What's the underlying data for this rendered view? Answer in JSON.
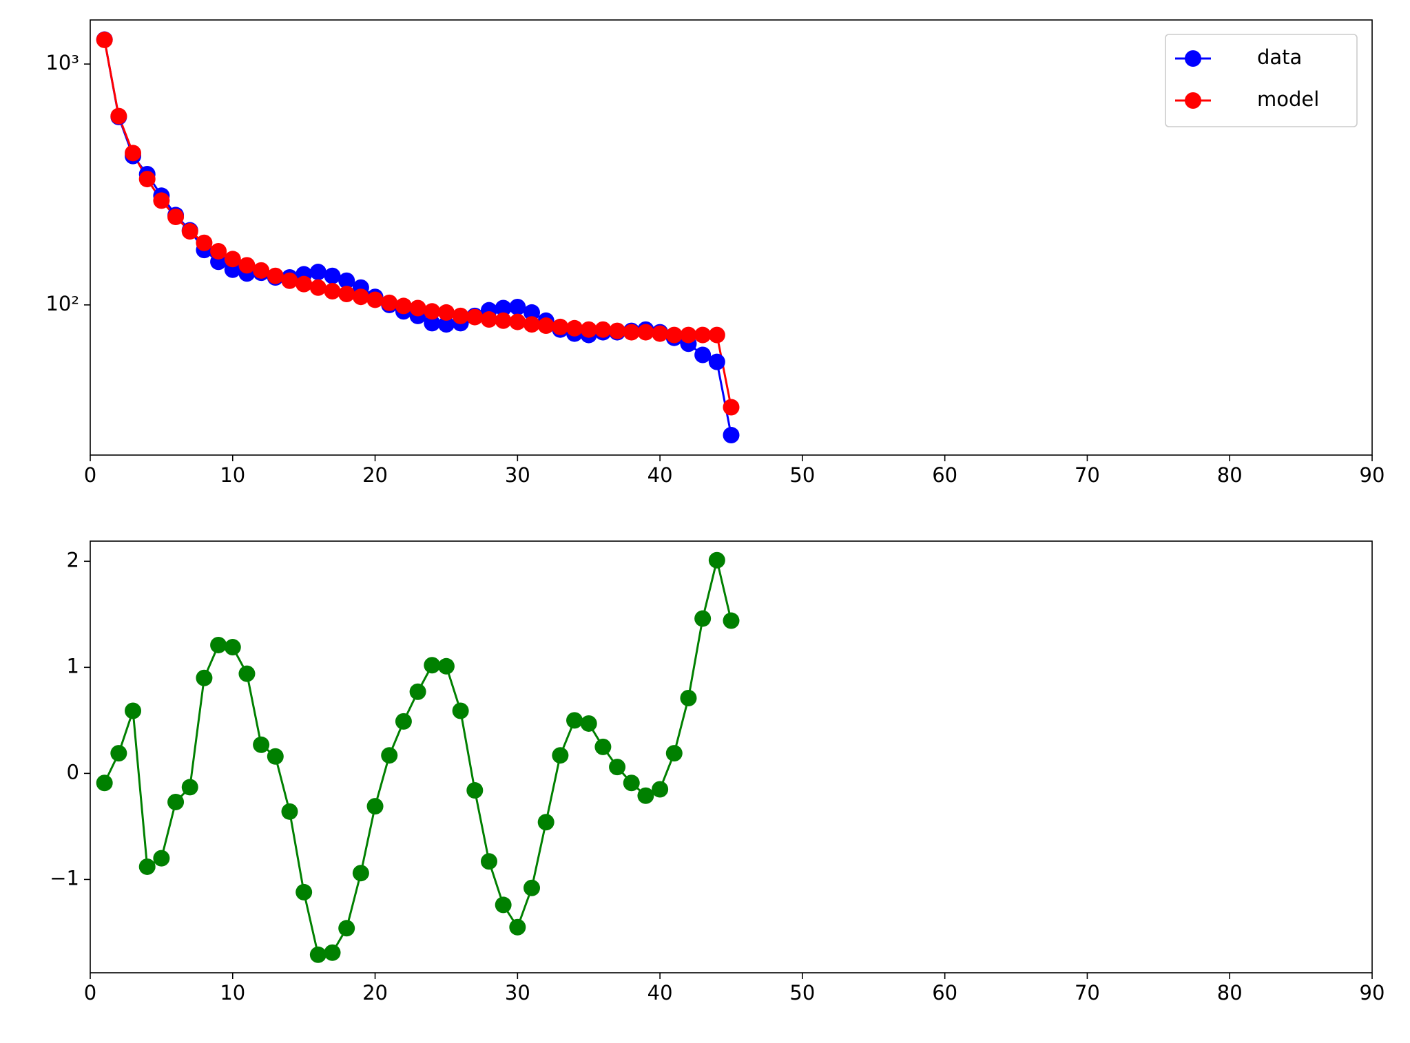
{
  "chart_data": [
    {
      "type": "line",
      "yscale": "log",
      "x": [
        1,
        2,
        3,
        4,
        5,
        6,
        7,
        8,
        9,
        10,
        11,
        12,
        13,
        14,
        15,
        16,
        17,
        18,
        19,
        20,
        21,
        22,
        23,
        24,
        25,
        26,
        27,
        28,
        29,
        30,
        31,
        32,
        33,
        34,
        35,
        36,
        37,
        38,
        39,
        40,
        41,
        42,
        43,
        44,
        45
      ],
      "series": [
        {
          "name": "data",
          "color": "#0000ff",
          "values": [
            1263,
            603,
            415,
            349,
            284,
            236,
            204,
            169,
            151,
            140,
            135,
            136,
            130,
            130,
            134,
            137,
            132,
            126,
            118,
            108,
            100,
            94,
            90,
            84,
            83,
            84,
            90,
            95,
            97,
            98,
            93,
            86,
            79,
            76,
            75,
            77,
            77,
            78,
            79,
            77,
            73,
            69,
            62,
            58,
            28.8
          ]
        },
        {
          "name": "model",
          "color": "#ff0000",
          "values": [
            1260,
            608,
            427,
            333,
            271,
            232,
            202,
            181,
            167,
            155,
            146,
            139,
            132,
            126,
            122,
            118,
            114,
            111,
            108,
            105,
            102,
            99,
            97,
            94,
            93,
            90,
            89,
            87,
            86,
            85,
            83,
            82,
            81,
            80,
            79,
            79,
            78,
            77,
            77,
            76,
            75,
            75,
            75,
            75,
            37.6
          ]
        }
      ],
      "xlim": [
        0,
        90
      ],
      "xticks": [
        0,
        10,
        20,
        30,
        40,
        50,
        60,
        70,
        80,
        90
      ],
      "ylim": [
        23.8,
        1524
      ],
      "yticks": [
        {
          "value": 100,
          "label": "10²"
        },
        {
          "value": 1000,
          "label": "10³"
        }
      ],
      "legend": "upper right"
    },
    {
      "type": "line",
      "x": [
        1,
        2,
        3,
        4,
        5,
        6,
        7,
        8,
        9,
        10,
        11,
        12,
        13,
        14,
        15,
        16,
        17,
        18,
        19,
        20,
        21,
        22,
        23,
        24,
        25,
        26,
        27,
        28,
        29,
        30,
        31,
        32,
        33,
        34,
        35,
        36,
        37,
        38,
        39,
        40,
        41,
        42,
        43,
        44,
        45
      ],
      "color": "#008000",
      "values": [
        -0.09,
        0.19,
        0.59,
        -0.88,
        -0.8,
        -0.27,
        -0.13,
        0.9,
        1.21,
        1.19,
        0.94,
        0.27,
        0.16,
        -0.36,
        -1.12,
        -1.71,
        -1.69,
        -1.46,
        -0.94,
        -0.31,
        0.17,
        0.49,
        0.77,
        1.02,
        1.01,
        0.59,
        -0.16,
        -0.83,
        -1.24,
        -1.45,
        -1.08,
        -0.46,
        0.17,
        0.5,
        0.47,
        0.25,
        0.06,
        -0.09,
        -0.21,
        -0.15,
        0.19,
        0.71,
        1.46,
        2.01,
        1.44
      ],
      "xlim": [
        0,
        90
      ],
      "xticks": [
        0,
        10,
        20,
        30,
        40,
        50,
        60,
        70,
        80,
        90
      ],
      "ylim": [
        -1.88,
        2.19
      ],
      "yticks": [
        {
          "value": -1,
          "label": "−1"
        },
        0,
        1,
        2
      ]
    }
  ]
}
